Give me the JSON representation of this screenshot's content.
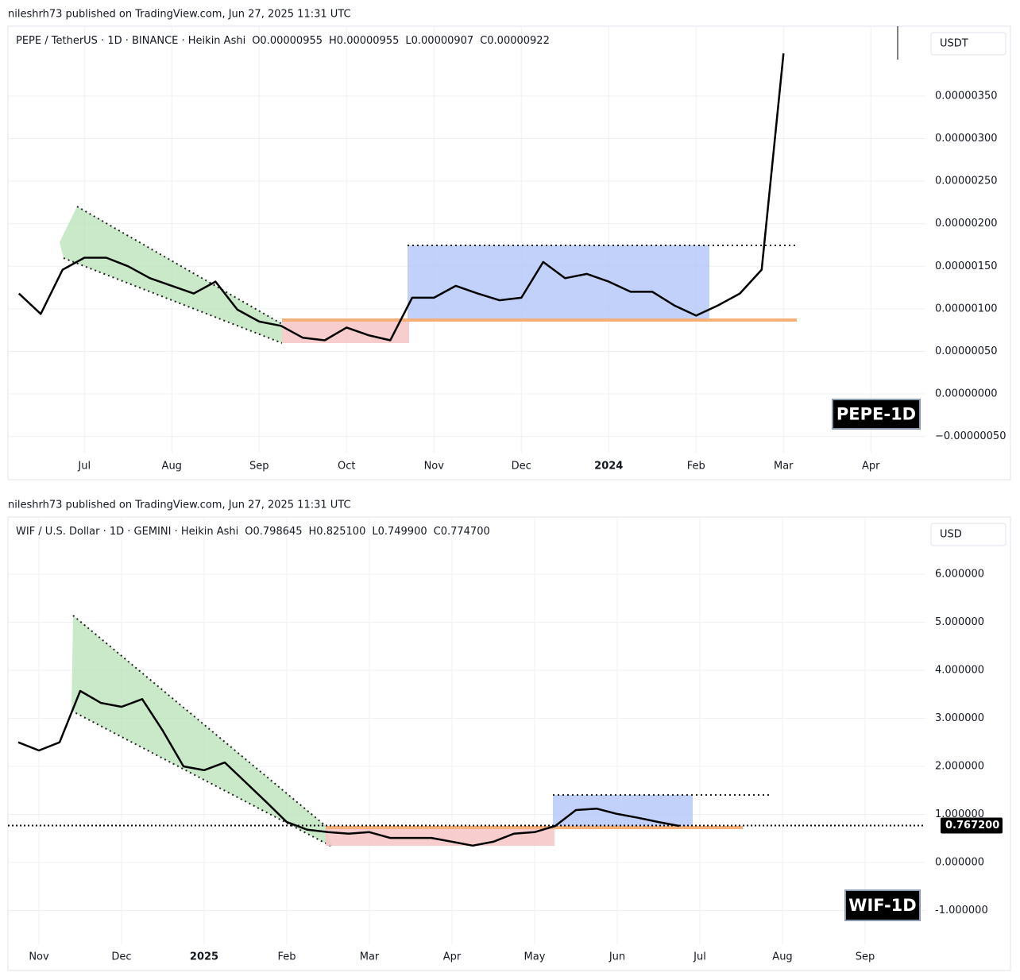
{
  "chart_data": [
    {
      "type": "line",
      "color": "#000000",
      "published": "nileshrh73 published on TradingView.com, Jun 27, 2025 11:31 UTC",
      "symbol": "PEPE / TetherUS · 1D · BINANCE · Heikin Ashi",
      "ohlc": [
        "O0.00000955",
        "H0.00000955",
        "L0.00000907",
        "C0.00000922"
      ],
      "currency": "USDT",
      "badge": "PEPE-1D",
      "categories": [
        null,
        null,
        null,
        "Jul",
        null,
        null,
        null,
        "Aug",
        null,
        null,
        null,
        "Sep",
        null,
        null,
        null,
        "Oct",
        null,
        null,
        null,
        "Nov",
        null,
        null,
        null,
        "Dec",
        null,
        null,
        null,
        "2024",
        null,
        null,
        null,
        "Feb",
        null,
        null,
        null,
        "Mar",
        null,
        null,
        null,
        "Apr",
        null,
        null
      ],
      "values": [
        1.18e-06,
        9.4e-07,
        1.46e-06,
        1.6e-06,
        1.6e-06,
        1.5e-06,
        1.36e-06,
        1.27e-06,
        1.18e-06,
        1.32e-06,
        9.9e-07,
        8.5e-07,
        8e-07,
        6.6e-07,
        6.3e-07,
        7.8e-07,
        6.9e-07,
        6.3e-07,
        1.13e-06,
        1.13e-06,
        1.27e-06,
        1.18e-06,
        1.1e-06,
        1.13e-06,
        1.55e-06,
        1.36e-06,
        1.41e-06,
        1.32e-06,
        1.2e-06,
        1.2e-06,
        1.04e-06,
        9.2e-07,
        1.04e-06,
        1.18e-06,
        1.46e-06,
        4e-06,
        null,
        null,
        null,
        null,
        null,
        null
      ],
      "ylim": [
        -6.9e-07,
        4.32e-06
      ],
      "yticks": [
        {
          "value": -5e-07,
          "label": "−0.00000050"
        },
        {
          "value": 0,
          "label": "0.00000000"
        },
        {
          "value": 5e-07,
          "label": "0.00000050"
        },
        {
          "value": 1e-06,
          "label": "0.00000100"
        },
        {
          "value": 1.5e-06,
          "label": "0.00000150"
        },
        {
          "value": 2e-06,
          "label": "0.00000200"
        },
        {
          "value": 2.5e-06,
          "label": "0.00000250"
        },
        {
          "value": 3e-06,
          "label": "0.00000300"
        },
        {
          "value": 3.5e-06,
          "label": "0.00000350"
        }
      ],
      "grid": true
    },
    {
      "type": "line",
      "color": "#000000",
      "published": "nileshrh73 published on TradingView.com, Jun 27, 2025 11:31 UTC",
      "symbol": "WIF / U.S. Dollar · 1D · GEMINI · Heikin Ashi",
      "ohlc": [
        "O0.798645",
        "H0.825100",
        "L0.749900",
        "C0.774700"
      ],
      "currency": "USD",
      "badge": "WIF-1D",
      "categories": [
        null,
        "Nov",
        null,
        null,
        null,
        "Dec",
        null,
        null,
        null,
        "2025",
        null,
        null,
        null,
        "Feb",
        null,
        null,
        null,
        "Mar",
        null,
        null,
        null,
        "Apr",
        null,
        null,
        null,
        "May",
        null,
        null,
        null,
        "Jun",
        null,
        null,
        null,
        "Jul",
        null,
        null,
        null,
        "Aug",
        null,
        null,
        null,
        "Sep",
        null,
        null,
        null
      ],
      "values": [
        2.5,
        2.33,
        2.5,
        3.57,
        3.32,
        3.24,
        3.4,
        2.74,
        2.0,
        1.92,
        2.08,
        1.67,
        1.26,
        0.84,
        0.68,
        0.63,
        0.6,
        0.63,
        0.51,
        0.51,
        0.51,
        0.43,
        0.35,
        0.43,
        0.6,
        0.63,
        0.76,
        1.09,
        1.12,
        1.01,
        0.93,
        0.84,
        0.76,
        null,
        null,
        null,
        null,
        null,
        null,
        null,
        null,
        null,
        null,
        null,
        null
      ],
      "ylim": [
        -1.72,
        7.19
      ],
      "yticks": [
        {
          "value": -1,
          "label": "-1.000000"
        },
        {
          "value": 0,
          "label": "0.000000"
        },
        {
          "value": 1,
          "label": "1.000000"
        },
        {
          "value": 2,
          "label": "2.000000"
        },
        {
          "value": 3,
          "label": "3.000000"
        },
        {
          "value": 4,
          "label": "4.000000"
        },
        {
          "value": 5,
          "label": "5.000000"
        },
        {
          "value": 6,
          "label": "6.000000"
        }
      ],
      "price_line": {
        "value": 0.7672,
        "label": "0.767200"
      },
      "grid": true
    }
  ]
}
